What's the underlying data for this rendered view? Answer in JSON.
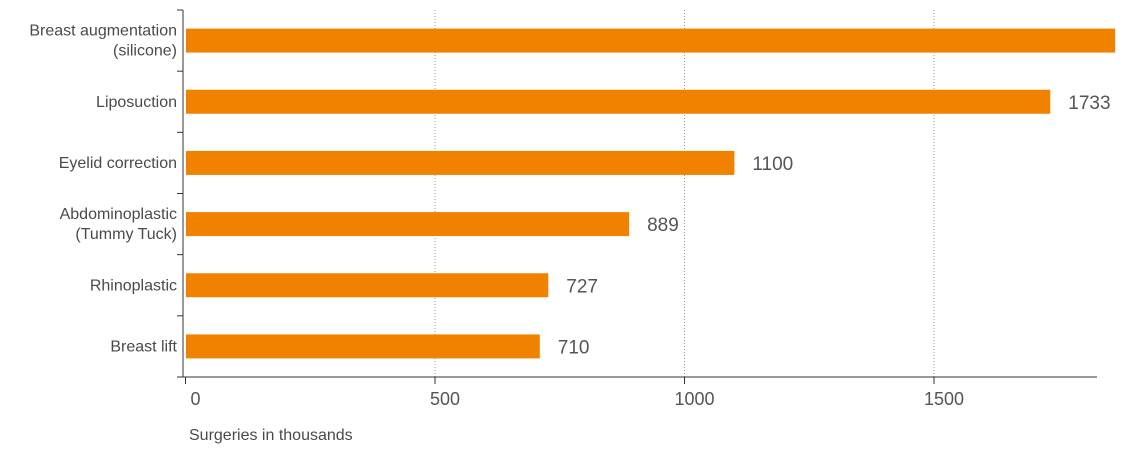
{
  "chart_data": {
    "type": "bar",
    "orientation": "horizontal",
    "categories": [
      [
        "Breast augmentation",
        "(silicone)"
      ],
      [
        "Liposuction"
      ],
      [
        "Eyelid correction"
      ],
      [
        "Abdominoplastic",
        "(Tummy Tuck)"
      ],
      [
        "Rhinoplastic"
      ],
      [
        "Breast lift"
      ]
    ],
    "values": [
      1863,
      1733,
      1100,
      889,
      727,
      710
    ],
    "bar_color": "#f08200",
    "x_ticks": [
      0,
      500,
      1000,
      1500
    ],
    "x_tick_labels": [
      "0",
      "500",
      "1000",
      "1500"
    ],
    "xlabel": "Surgeries in thousands",
    "ylabel": "",
    "title": "",
    "grid": "vertical dotted",
    "legend": "none"
  }
}
